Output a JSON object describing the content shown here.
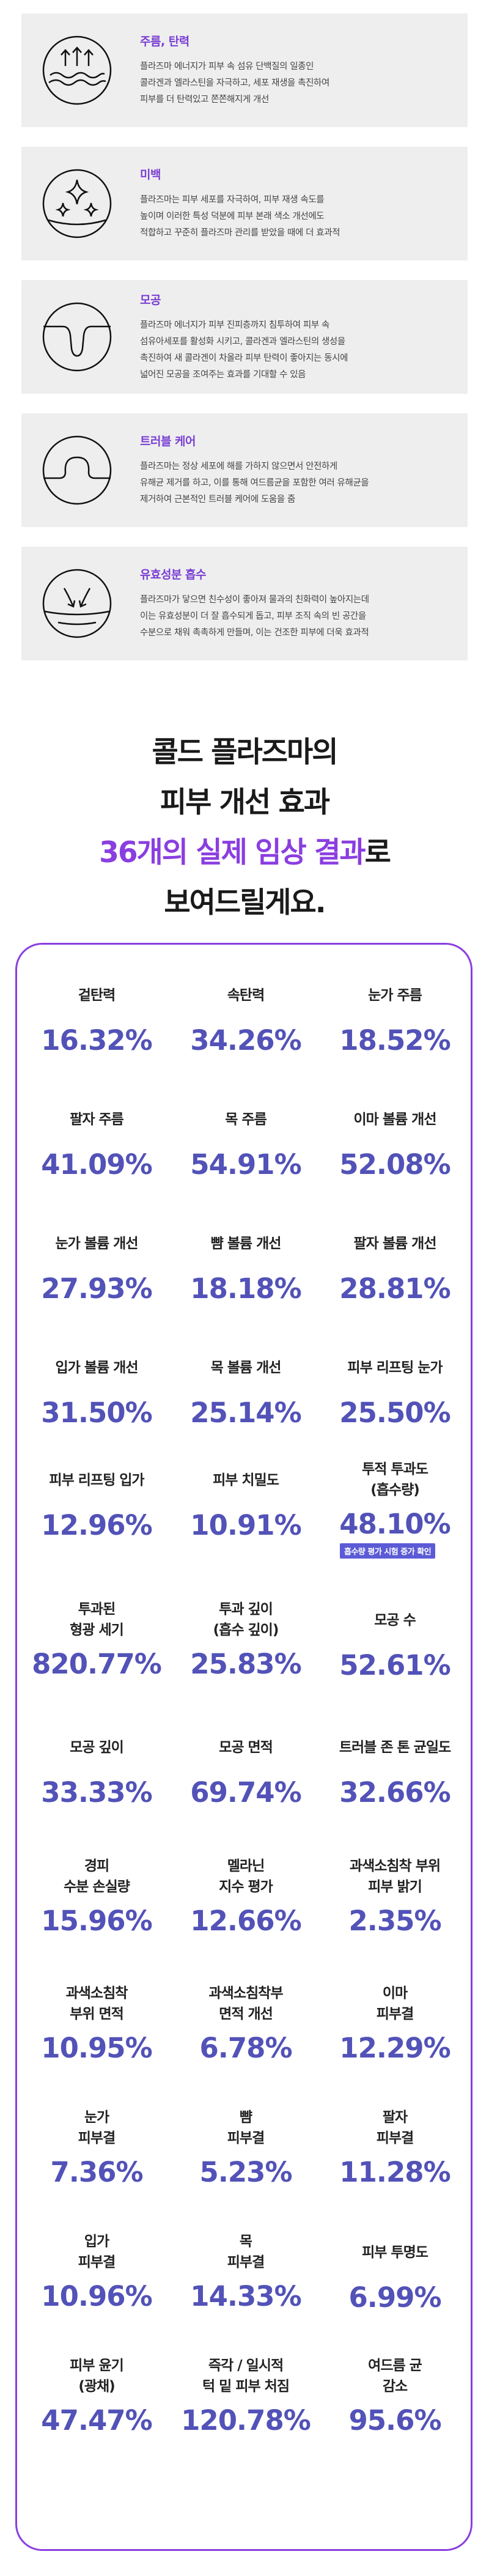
{
  "features": [
    {
      "icon": "wrinkle-arrows-icon",
      "title": "주름, 탄력",
      "desc": [
        "플라즈마 에너지가 피부 속 섬유 단백질의 일종인",
        "콜라겐과 엘라스틴을 자극하고, 세포 재생을 촉진하여",
        "피부를 더 탄력있고 쫀쫀해지게 개선"
      ]
    },
    {
      "icon": "sparkle-whitening-icon",
      "title": "미백",
      "desc": [
        "플라즈마는 피부 세포를 자극하여, 피부 재생 속도를",
        "높이며 이러한 특성 덕분에 피부 본래 색소 개선에도",
        "적합하고 꾸준히 플라즈마 관리를 받았을 때에 더 효과적"
      ]
    },
    {
      "icon": "pore-icon",
      "title": "모공",
      "desc": [
        "플라즈마 에너지가 피부 진피층까지 침투하여 피부 속",
        "섬유아세포를 활성화 시키고, 콜라겐과 엘라스틴의 생성을",
        "촉진하여 새 콜라겐이 차올라 피부 탄력이 좋아지는 동시에",
        "넓어진 모공을 조여주는 효과를 기대할 수 있음"
      ]
    },
    {
      "icon": "trouble-bump-icon",
      "title": "트러블 케어",
      "desc": [
        "플라즈마는 정상 세포에 해를 가하지 않으면서 안전하게",
        "유해균 제거를 하고, 이를 통해 여드름균을 포함한 여러 유해균을",
        "제거하여 근본적인 트러블 케어에 도움을 줌"
      ]
    },
    {
      "icon": "absorption-arrows-icon",
      "title": "유효성분 흡수",
      "desc": [
        "플라즈마가 닿으면 친수성이 좋아져 물과의 친화력이 높아지는데",
        "이는 유효성분이 더 잘 흡수되게 돕고, 피부 조직 속의 빈 공간을",
        "수분으로 채워 촉촉하게 만들며, 이는 건조한 피부에 더욱 효과적"
      ]
    }
  ],
  "headline": {
    "line1": "콜드 플라즈마의",
    "line2": "피부 개선 효과",
    "line3_accent": "36개의 실제 임상 결과",
    "line3_rest": "로",
    "line4": "보여드릴게요."
  },
  "results": [
    {
      "label": "겉탄력",
      "value": "16.32%"
    },
    {
      "label": "속탄력",
      "value": "34.26%"
    },
    {
      "label": "눈가 주름",
      "value": "18.52%"
    },
    {
      "label": "팔자 주름",
      "value": "41.09%"
    },
    {
      "label": "목 주름",
      "value": "54.91%"
    },
    {
      "label": "이마 볼륨 개선",
      "value": "52.08%"
    },
    {
      "label": "눈가 볼륨 개선",
      "value": "27.93%"
    },
    {
      "label": "뺨 볼륨 개선",
      "value": "18.18%"
    },
    {
      "label": "팔자 볼륨 개선",
      "value": "28.81%"
    },
    {
      "label": "입가 볼륨 개선",
      "value": "31.50%"
    },
    {
      "label": "목 볼륨 개선",
      "value": "25.14%"
    },
    {
      "label": "피부 리프팅 눈가",
      "value": "25.50%"
    },
    {
      "label": "피부 리프팅 입가",
      "value": "12.96%"
    },
    {
      "label": "피부 치밀도",
      "value": "10.91%"
    },
    {
      "label": "투적 투과도\n(흡수량)",
      "value": "48.10%",
      "badge": "흡수량 평가 시험 증가 확인"
    },
    {
      "label": "투과된\n형광 세기",
      "value": "820.77%"
    },
    {
      "label": "투과 깊이\n(흡수 깊이)",
      "value": "25.83%"
    },
    {
      "label": "모공 수",
      "value": "52.61%"
    },
    {
      "label": "모공 깊이",
      "value": "33.33%"
    },
    {
      "label": "모공 면적",
      "value": "69.74%"
    },
    {
      "label": "트러블 존 톤 균일도",
      "value": "32.66%"
    },
    {
      "label": "경피\n수분 손실량",
      "value": "15.96%"
    },
    {
      "label": "멜라닌\n지수 평가",
      "value": "12.66%"
    },
    {
      "label": "과색소침착 부위\n피부 밝기",
      "value": "2.35%"
    },
    {
      "label": "과색소침착\n부위 면적",
      "value": "10.95%"
    },
    {
      "label": "과색소침착부\n면적 개선",
      "value": "6.78%"
    },
    {
      "label": "이마\n피부결",
      "value": "12.29%"
    },
    {
      "label": "눈가\n피부결",
      "value": "7.36%"
    },
    {
      "label": "뺨\n피부결",
      "value": "5.23%"
    },
    {
      "label": "팔자\n피부결",
      "value": "11.28%"
    },
    {
      "label": "입가\n피부결",
      "value": "10.96%"
    },
    {
      "label": "목\n피부결",
      "value": "14.33%"
    },
    {
      "label": "피부 투명도",
      "value": "6.99%"
    },
    {
      "label": "피부 윤기\n(광채)",
      "value": "47.47%"
    },
    {
      "label": "즉각 / 일시적\n턱 밑 피부 처짐",
      "value": "120.78%"
    },
    {
      "label": "여드름 균\n감소",
      "value": "95.6%"
    }
  ],
  "colors": {
    "accent": "#8a3ee0",
    "value": "#5252b8",
    "card_bg": "#eeeeef",
    "title": "#7a3fd3"
  }
}
